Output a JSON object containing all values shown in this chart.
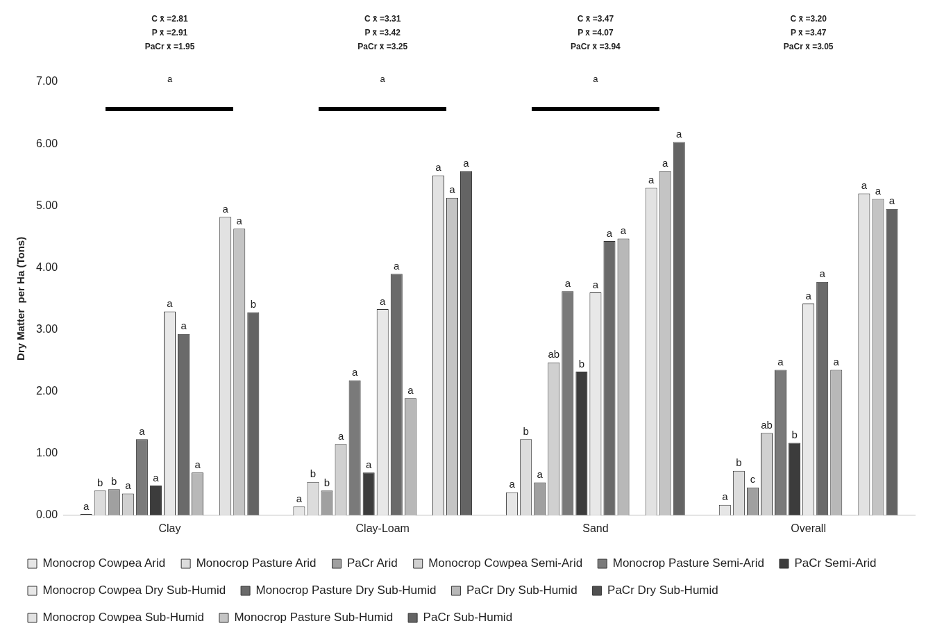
{
  "chart_data": {
    "type": "bar",
    "categories": [
      "Clay",
      "Clay-Loam",
      "Sand",
      "Overall"
    ],
    "ylabel": "Dry Matter  per Ha (Tons)",
    "ylim": [
      0,
      7
    ],
    "yticks": [
      {
        "value": 0,
        "label": "0.00"
      },
      {
        "value": 1,
        "label": "1.00"
      },
      {
        "value": 2,
        "label": "2.00"
      },
      {
        "value": 3,
        "label": "3.00"
      },
      {
        "value": 4,
        "label": "4.00"
      },
      {
        "value": 5,
        "label": "5.00"
      },
      {
        "value": 6,
        "label": "6.00"
      },
      {
        "value": 7,
        "label": "7.00"
      }
    ],
    "grid": false,
    "legend": "bottom",
    "series": [
      {
        "name": "Monocrop Cowpea Arid",
        "color": "#e6e6e6",
        "values": [
          0.02,
          0.14,
          0.37,
          0.17
        ],
        "value_labels": [
          "a",
          "a",
          "a",
          "a"
        ]
      },
      {
        "name": "Monocrop Pasture Arid",
        "color": "#dcdcdc",
        "values": [
          0.4,
          0.54,
          1.23,
          0.72
        ],
        "value_labels": [
          "b",
          "b",
          "b",
          "b"
        ]
      },
      {
        "name": "PaCr Arid",
        "color": "#a0a0a0",
        "values": [
          0.42,
          0.4,
          0.53,
          0.45
        ],
        "value_labels": [
          "b",
          "b",
          "a",
          "c"
        ]
      },
      {
        "name": "Monocrop Cowpea Semi-Arid",
        "color": "#d0d0d0",
        "values": [
          0.35,
          1.15,
          2.47,
          1.33
        ],
        "value_labels": [
          "a",
          "a",
          "ab",
          "ab"
        ]
      },
      {
        "name": "Monocrop Pasture Semi-Arid",
        "color": "#7a7a7a",
        "values": [
          1.23,
          2.18,
          3.62,
          2.35
        ],
        "value_labels": [
          "a",
          "a",
          "a",
          "a"
        ]
      },
      {
        "name": "PaCr Semi-Arid",
        "color": "#3c3c3c",
        "values": [
          0.48,
          0.69,
          2.32,
          1.17
        ],
        "value_labels": [
          "a",
          "a",
          "b",
          "b"
        ]
      },
      {
        "name": "Monocrop Cowpea Dry Sub-Humid",
        "color": "#e8e8e8",
        "values": [
          3.29,
          3.33,
          3.6,
          3.42
        ],
        "value_labels": [
          "a",
          "a",
          "a",
          "a"
        ]
      },
      {
        "name": "Monocrop Pasture Dry Sub-Humid",
        "color": "#6a6a6a",
        "values": [
          2.93,
          3.9,
          4.43,
          3.77
        ],
        "value_labels": [
          "a",
          "a",
          "a",
          "a"
        ]
      },
      {
        "name": "PaCr Dry Sub-Humid",
        "color": "#b8b8b8",
        "values": [
          0.69,
          1.89,
          4.47,
          2.35
        ],
        "value_labels": [
          "a",
          "a",
          "a",
          "a"
        ]
      },
      {
        "name": "PaCr Dry Sub-Humid",
        "color": "#505050",
        "values": [
          null,
          null,
          null,
          null
        ]
      },
      {
        "name": "Monocrop Cowpea Sub-Humid",
        "color": "#e2e2e2",
        "values": [
          4.82,
          5.49,
          5.29,
          5.2
        ],
        "value_labels": [
          "a",
          "a",
          "a",
          "a"
        ]
      },
      {
        "name": "Monocrop Pasture Sub-Humid",
        "color": "#c4c4c4",
        "values": [
          4.63,
          5.13,
          5.56,
          5.11
        ],
        "value_labels": [
          "a",
          "a",
          "a",
          "a"
        ]
      },
      {
        "name": "PaCr Sub-Humid",
        "color": "#646464",
        "values": [
          3.28,
          5.56,
          6.03,
          4.95
        ],
        "value_labels": [
          "b",
          "a",
          "a",
          "a"
        ]
      }
    ],
    "annotations": [
      "C x̄ =2.81\nP x̄ =2.91\nPaCr x̄ =1.95",
      "C x̄ =3.31\nP x̄ =3.42\nPaCr x̄ =3.25",
      "C x̄ =3.47\nP x̄ =4.07\nPaCr x̄ =3.94",
      "C x̄ =3.20\nP x̄ =3.47\nPaCr x̄ =3.05",
      "a",
      "a",
      "a"
    ]
  }
}
